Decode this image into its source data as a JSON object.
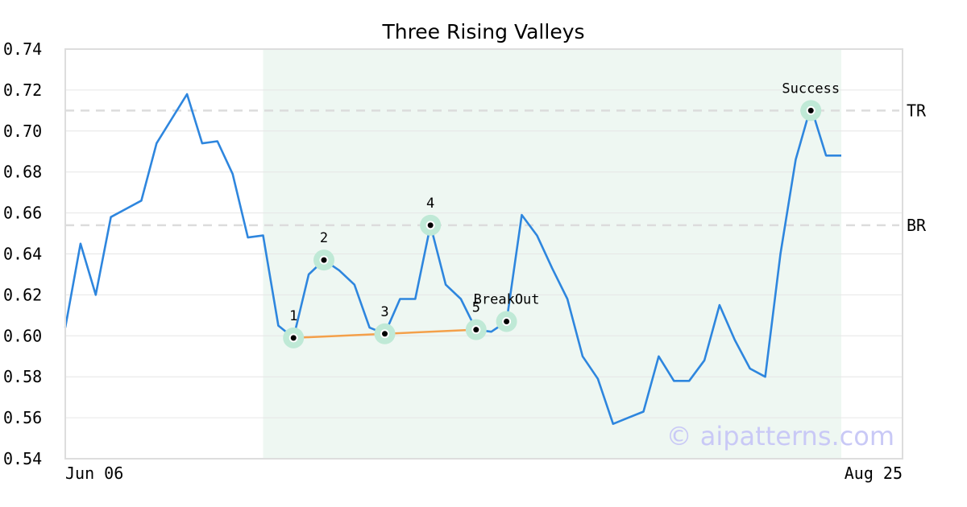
{
  "chart_data": {
    "type": "line",
    "title": "Three Rising Valleys",
    "xlabel": "",
    "ylabel": "",
    "ylim": [
      0.54,
      0.74
    ],
    "y_ticks": [
      "0.54",
      "0.56",
      "0.58",
      "0.60",
      "0.62",
      "0.64",
      "0.66",
      "0.68",
      "0.70",
      "0.72",
      "0.74"
    ],
    "x_tick_labels": [
      "Jun 06",
      "Aug 25"
    ],
    "grid": "horizontal",
    "series": [
      {
        "values": [
          0.604,
          0.645,
          0.62,
          0.658,
          0.662,
          0.666,
          0.694,
          0.706,
          0.718,
          0.694,
          0.695,
          0.679,
          0.648,
          0.649,
          0.605,
          0.599,
          0.63,
          0.637,
          0.632,
          0.625,
          0.604,
          0.601,
          0.618,
          0.618,
          0.654,
          0.625,
          0.618,
          0.603,
          0.602,
          0.607,
          0.659,
          0.649,
          0.633,
          0.618,
          0.59,
          0.579,
          0.557,
          0.56,
          0.563,
          0.59,
          0.578,
          0.578,
          0.588,
          0.615,
          0.598,
          0.584,
          0.58,
          0.64,
          0.686,
          0.712,
          0.688,
          0.688
        ],
        "color": "#2e86de"
      }
    ],
    "highlight_range": {
      "start_index": 13,
      "end_index": 51,
      "color": "#eef7f2"
    },
    "levels": [
      {
        "label": "TR",
        "value": 0.71
      },
      {
        "label": "BR",
        "value": 0.654
      }
    ],
    "points": [
      {
        "label": "1",
        "index": 15,
        "value": 0.599
      },
      {
        "label": "2",
        "index": 17,
        "value": 0.637
      },
      {
        "label": "3",
        "index": 21,
        "value": 0.601
      },
      {
        "label": "4",
        "index": 24,
        "value": 0.654
      },
      {
        "label": "5",
        "index": 27,
        "value": 0.603
      },
      {
        "label": "BreakOut",
        "index": 29,
        "value": 0.607
      },
      {
        "label": "Success",
        "index": 49,
        "value": 0.71
      }
    ],
    "support_line": {
      "from_index": 15,
      "from_value": 0.599,
      "to_index": 27,
      "to_value": 0.603,
      "color": "#f4a04a"
    },
    "marker_halo_color": "#bfe9d6"
  },
  "watermark": "© aipatterns.com"
}
